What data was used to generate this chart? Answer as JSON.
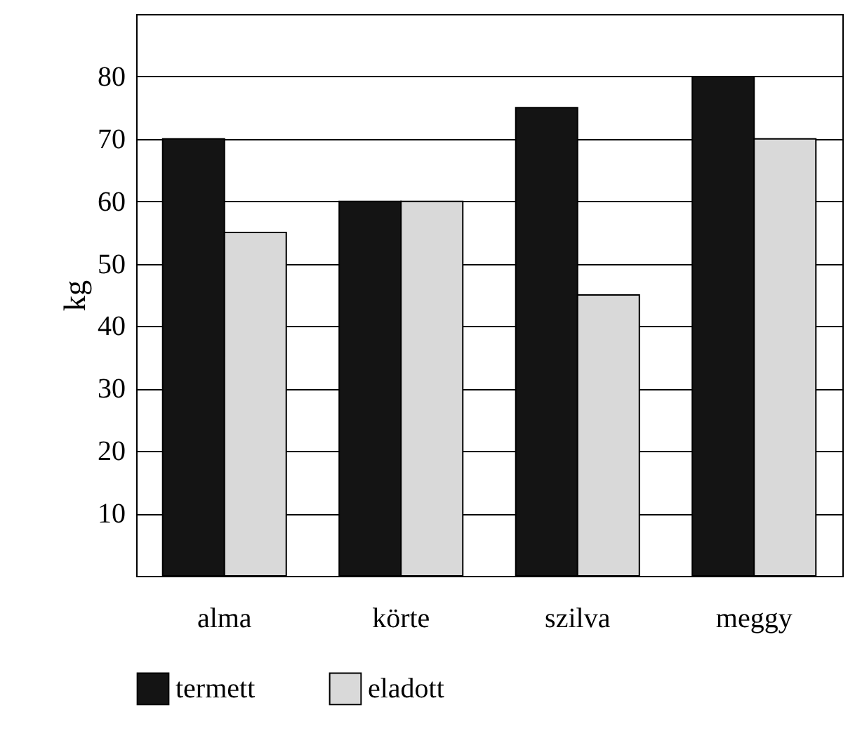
{
  "chart_data": {
    "type": "bar",
    "ylabel": "kg",
    "categories": [
      "alma",
      "körte",
      "szilva",
      "meggy"
    ],
    "series": [
      {
        "name": "termett",
        "color": "#141414",
        "values": [
          70,
          60,
          75,
          80
        ]
      },
      {
        "name": "eladott",
        "color": "#d9d9d9",
        "values": [
          55,
          60,
          45,
          70
        ]
      }
    ],
    "ylim": [
      0,
      90
    ],
    "yticks": [
      10,
      20,
      30,
      40,
      50,
      60,
      70,
      80
    ],
    "grid": "y",
    "legend": "bottom"
  }
}
